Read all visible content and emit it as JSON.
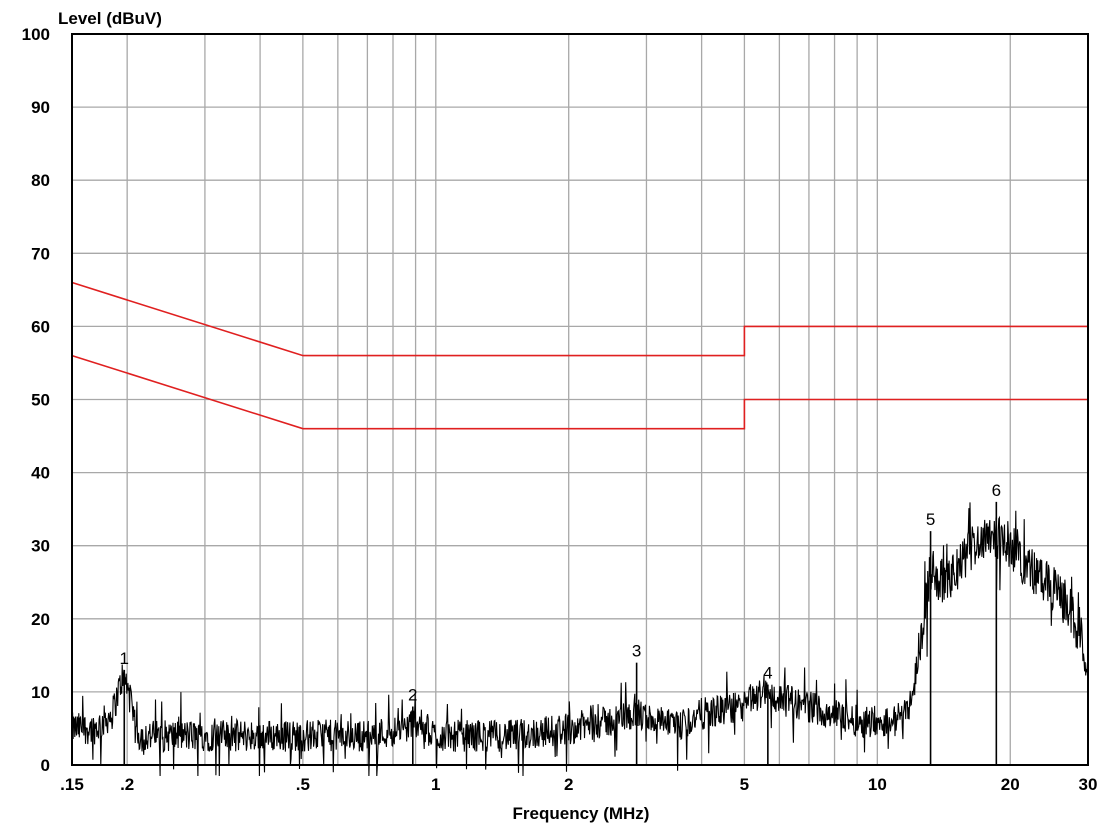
{
  "chart_data": {
    "type": "line",
    "ylabel": "Level (dBuV)",
    "xlabel": "Frequency (MHz)",
    "x_scale": "log",
    "xlim": [
      0.15,
      30
    ],
    "ylim": [
      0,
      100
    ],
    "grid": true,
    "y_ticks": [
      {
        "value": 0,
        "label": "0"
      },
      {
        "value": 10,
        "label": "10"
      },
      {
        "value": 20,
        "label": "20"
      },
      {
        "value": 30,
        "label": "30"
      },
      {
        "value": 40,
        "label": "40"
      },
      {
        "value": 50,
        "label": "50"
      },
      {
        "value": 60,
        "label": "60"
      },
      {
        "value": 70,
        "label": "70"
      },
      {
        "value": 80,
        "label": "80"
      },
      {
        "value": 90,
        "label": "90"
      },
      {
        "value": 100,
        "label": "100"
      }
    ],
    "x_ticks": [
      {
        "value": 0.15,
        "label": ".15"
      },
      {
        "value": 0.2,
        "label": ".2"
      },
      {
        "value": 0.5,
        "label": ".5"
      },
      {
        "value": 1,
        "label": "1"
      },
      {
        "value": 2,
        "label": "2"
      },
      {
        "value": 5,
        "label": "5"
      },
      {
        "value": 10,
        "label": "10"
      },
      {
        "value": 20,
        "label": "20"
      },
      {
        "value": 30,
        "label": "30"
      }
    ],
    "x_gridlines": [
      0.15,
      0.2,
      0.3,
      0.4,
      0.5,
      0.6,
      0.7,
      0.8,
      0.9,
      1,
      2,
      3,
      4,
      5,
      6,
      7,
      8,
      9,
      10,
      20,
      30
    ],
    "limit_lines": [
      {
        "color": "#e02020",
        "points": [
          [
            0.15,
            66
          ],
          [
            0.5,
            56
          ],
          [
            5,
            56
          ],
          [
            5,
            60
          ],
          [
            30,
            60
          ]
        ]
      },
      {
        "color": "#e02020",
        "points": [
          [
            0.15,
            56
          ],
          [
            0.5,
            46
          ],
          [
            5,
            46
          ],
          [
            5,
            50
          ],
          [
            30,
            50
          ]
        ]
      }
    ],
    "spectrum_color": "#000000",
    "spectrum_profile": [
      [
        0.15,
        5
      ],
      [
        0.17,
        5
      ],
      [
        0.185,
        7
      ],
      [
        0.195,
        12
      ],
      [
        0.2,
        11
      ],
      [
        0.21,
        4
      ],
      [
        0.3,
        4
      ],
      [
        0.5,
        4
      ],
      [
        0.7,
        4
      ],
      [
        0.85,
        5
      ],
      [
        0.9,
        6
      ],
      [
        1,
        4
      ],
      [
        1.5,
        4
      ],
      [
        2,
        5
      ],
      [
        2.5,
        6
      ],
      [
        2.8,
        7
      ],
      [
        3.2,
        6
      ],
      [
        3.5,
        5
      ],
      [
        4,
        7
      ],
      [
        5,
        8
      ],
      [
        5.5,
        10
      ],
      [
        6,
        9
      ],
      [
        7,
        8
      ],
      [
        8,
        7
      ],
      [
        9,
        6
      ],
      [
        10,
        6
      ],
      [
        11,
        6
      ],
      [
        12,
        9
      ],
      [
        12.5,
        17
      ],
      [
        13.2,
        27
      ],
      [
        14,
        25
      ],
      [
        15,
        26
      ],
      [
        16,
        29
      ],
      [
        17,
        31
      ],
      [
        18,
        32
      ],
      [
        20,
        30
      ],
      [
        22,
        27
      ],
      [
        25,
        24
      ],
      [
        27,
        22
      ],
      [
        29,
        17
      ],
      [
        30,
        14
      ]
    ],
    "markers": [
      {
        "label": "1",
        "x": 0.197,
        "y": 13
      },
      {
        "label": "2",
        "x": 0.887,
        "y": 8
      },
      {
        "label": "3",
        "x": 2.85,
        "y": 14
      },
      {
        "label": "4",
        "x": 5.65,
        "y": 11
      },
      {
        "label": "5",
        "x": 13.2,
        "y": 32
      },
      {
        "label": "6",
        "x": 18.6,
        "y": 36
      }
    ]
  }
}
